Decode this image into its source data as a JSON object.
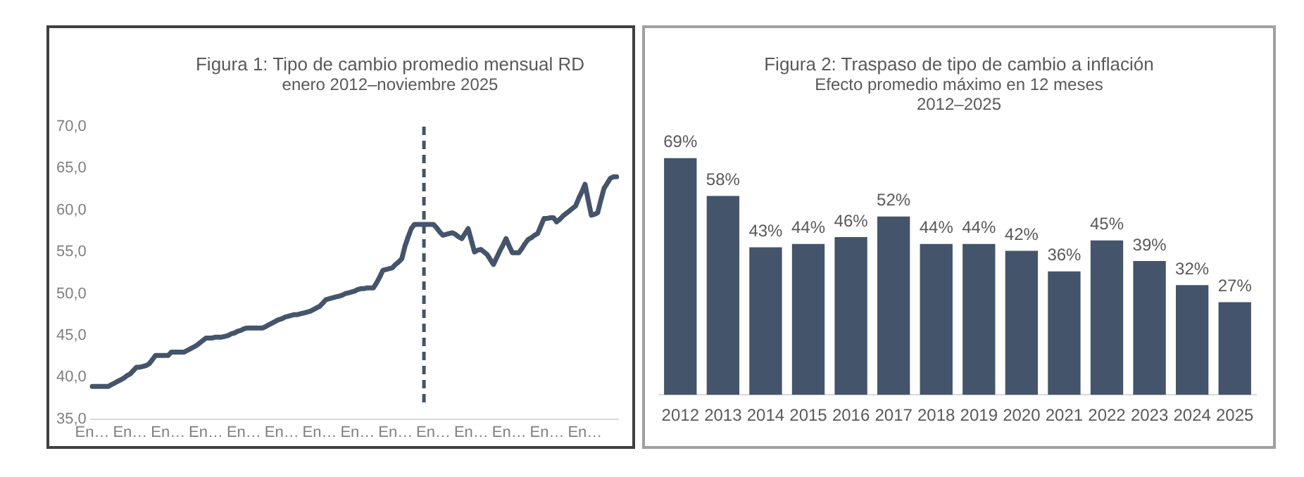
{
  "chart_data": [
    {
      "type": "line",
      "title": "Figura 1: Tipo de cambio promedio mensual RD",
      "subtitle": "enero 2012–noviembre 2025",
      "categories": [
        "En…",
        null,
        null,
        null,
        null,
        null,
        null,
        null,
        null,
        null,
        null,
        null,
        "En…",
        null,
        null,
        null,
        null,
        null,
        null,
        null,
        null,
        null,
        null,
        null,
        "En…",
        null,
        null,
        null,
        null,
        null,
        null,
        null,
        null,
        null,
        null,
        null,
        "En…",
        null,
        null,
        null,
        null,
        null,
        null,
        null,
        null,
        null,
        null,
        null,
        "En…",
        null,
        null,
        null,
        null,
        null,
        null,
        null,
        null,
        null,
        null,
        null,
        "En…",
        null,
        null,
        null,
        null,
        null,
        null,
        null,
        null,
        null,
        null,
        null,
        "En…",
        null,
        null,
        null,
        null,
        null,
        null,
        null,
        null,
        null,
        null,
        null,
        "En…",
        null,
        null,
        null,
        null,
        null,
        null,
        null,
        null,
        null,
        null,
        null,
        "En…",
        null,
        null,
        null,
        null,
        null,
        null,
        null,
        null,
        null,
        null,
        null,
        "En…",
        null,
        null,
        null,
        null,
        null,
        null,
        null,
        null,
        null,
        null,
        null,
        "En…",
        null,
        null,
        null,
        null,
        null,
        null,
        null,
        null,
        null,
        null,
        null,
        "En…",
        null,
        null,
        null,
        null,
        null,
        null,
        null,
        null,
        null,
        null,
        null,
        "En…",
        null,
        null,
        null,
        null,
        null,
        null,
        null,
        null,
        null,
        null,
        null,
        "En…",
        null,
        null,
        null,
        null,
        null,
        null,
        null,
        null,
        null,
        null
      ],
      "series": [
        {
          "color": "#44546a",
          "values": [
            38.9,
            38.9,
            38.9,
            38.9,
            38.9,
            38.9,
            39.1,
            39.3,
            39.5,
            39.7,
            39.9,
            40.2,
            40.4,
            40.8,
            41.2,
            41.2,
            41.3,
            41.4,
            41.6,
            42.1,
            42.6,
            42.6,
            42.6,
            42.6,
            42.6,
            43.0,
            43.0,
            43.0,
            43.0,
            43.0,
            43.2,
            43.4,
            43.6,
            43.8,
            44.1,
            44.4,
            44.7,
            44.7,
            44.7,
            44.8,
            44.8,
            44.8,
            44.9,
            45.0,
            45.2,
            45.3,
            45.5,
            45.6,
            45.8,
            45.9,
            45.9,
            45.9,
            45.9,
            45.9,
            45.9,
            46.1,
            46.3,
            46.5,
            46.7,
            46.9,
            47.0,
            47.2,
            47.3,
            47.4,
            47.5,
            47.5,
            47.6,
            47.7,
            47.8,
            47.9,
            48.1,
            48.3,
            48.5,
            48.9,
            49.3,
            49.4,
            49.5,
            49.6,
            49.7,
            49.8,
            50.0,
            50.1,
            50.2,
            50.3,
            50.5,
            50.6,
            50.6,
            50.7,
            50.7,
            50.7,
            51.3,
            52.0,
            52.8,
            52.9,
            53.0,
            53.1,
            53.5,
            53.8,
            54.2,
            55.7,
            56.8,
            57.8,
            58.3,
            58.3,
            58.3,
            58.3,
            58.3,
            58.3,
            58.3,
            57.9,
            57.4,
            57.0,
            57.1,
            57.2,
            57.3,
            57.1,
            56.8,
            56.6,
            57.2,
            57.8,
            56.4,
            55.0,
            55.2,
            55.3,
            55.0,
            54.7,
            54.1,
            53.5,
            54.3,
            55.1,
            55.8,
            56.6,
            55.7,
            54.9,
            54.9,
            54.9,
            55.4,
            56.0,
            56.5,
            56.7,
            57.0,
            57.2,
            58.1,
            59.0,
            59.0,
            59.1,
            59.1,
            58.6,
            58.9,
            59.3,
            59.6,
            59.9,
            60.2,
            60.5,
            61.4,
            62.2,
            63.1,
            61.2,
            59.4,
            59.5,
            59.7,
            61.2,
            62.6,
            63.2,
            63.8,
            64.0,
            64.0
          ]
        }
      ],
      "ylim": [
        35,
        70
      ],
      "yticks": [
        {
          "value": 35,
          "label": "35,0"
        },
        {
          "value": 40,
          "label": "40,0"
        },
        {
          "value": 45,
          "label": "45,0"
        },
        {
          "value": 50,
          "label": "50,0"
        },
        {
          "value": 55,
          "label": "55,0"
        },
        {
          "value": 60,
          "label": "60,0"
        },
        {
          "value": 65,
          "label": "65,0"
        },
        {
          "value": 70,
          "label": "70,0"
        }
      ],
      "grid": false
    },
    {
      "type": "bar",
      "title": "Figura 2: Traspaso de tipo de cambio a inflación",
      "subtitle": "Efecto promedio máximo en 12 meses\n2012–2025",
      "categories": [
        "2012",
        "2013",
        "2014",
        "2015",
        "2016",
        "2017",
        "2018",
        "2019",
        "2020",
        "2021",
        "2022",
        "2023",
        "2024",
        "2025"
      ],
      "values": [
        69,
        58,
        43,
        44,
        46,
        52,
        44,
        44,
        42,
        36,
        45,
        39,
        32,
        27
      ],
      "value_labels": [
        "69%",
        "58%",
        "43%",
        "44%",
        "46%",
        "52%",
        "44%",
        "44%",
        "42%",
        "36%",
        "45%",
        "39%",
        "32%",
        "27%"
      ],
      "color": "#44546a",
      "tick_labels": "x",
      "grid": false
    }
  ]
}
